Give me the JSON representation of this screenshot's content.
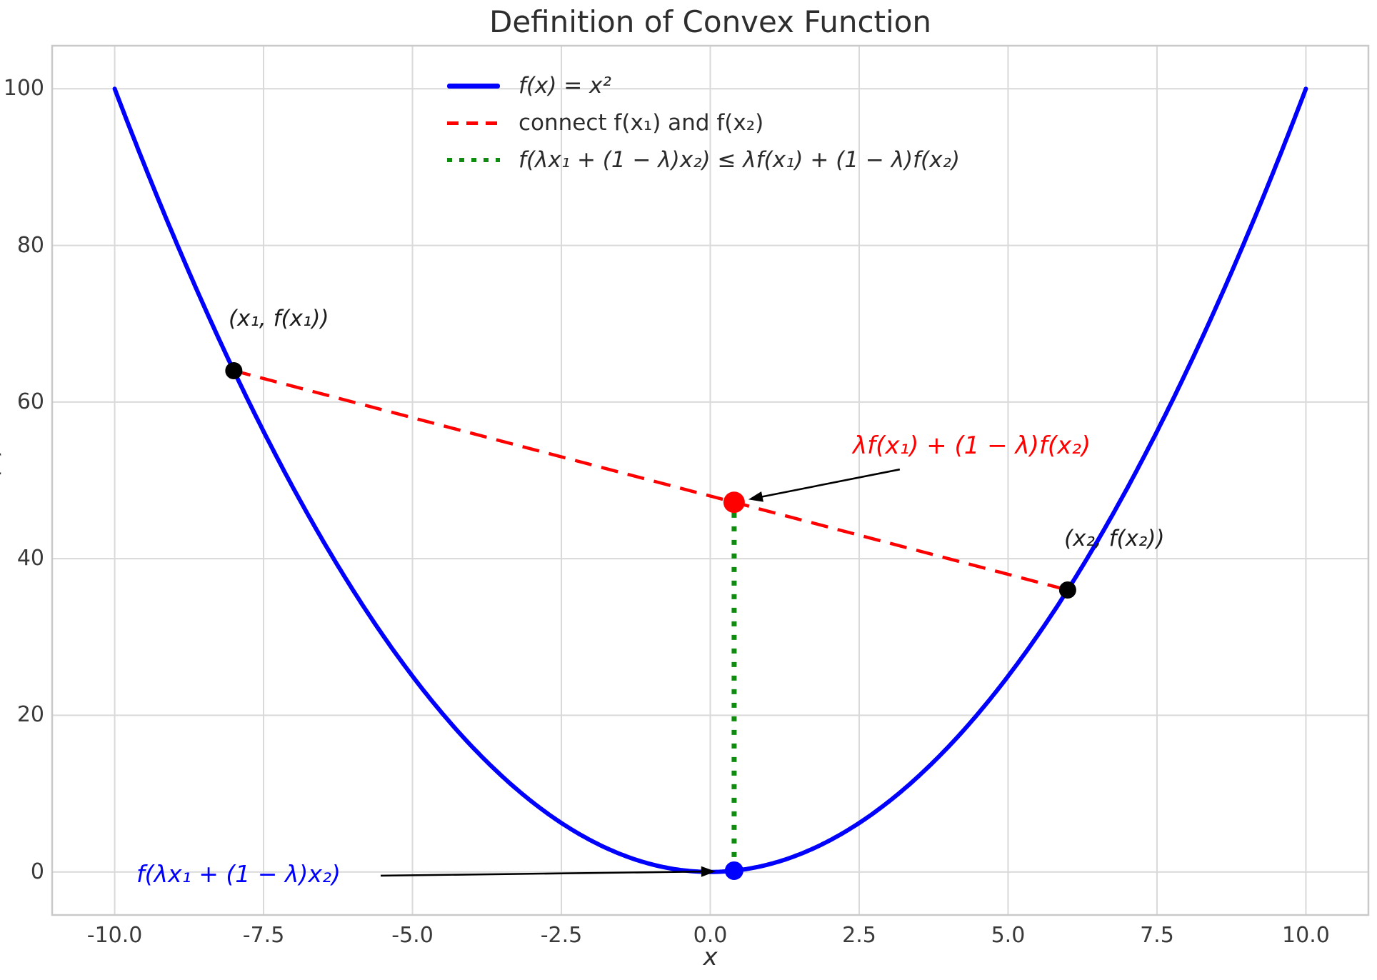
{
  "chart_data": {
    "type": "line",
    "title": "Definition of Convex Function",
    "xlabel": "x",
    "ylabel": "f(x)",
    "xlim": [
      -11.05,
      11.05
    ],
    "ylim": [
      -5.5,
      105.5
    ],
    "xtick_values": [
      -10,
      -7.5,
      -5,
      -2.5,
      0,
      2.5,
      5,
      7.5,
      10
    ],
    "xtick_labels": [
      "-10.0",
      "-7.5",
      "-5.0",
      "-2.5",
      "0.0",
      "2.5",
      "5.0",
      "7.5",
      "10.0"
    ],
    "ytick_values": [
      0,
      20,
      40,
      60,
      80,
      100
    ],
    "ytick_labels": [
      "0",
      "20",
      "40",
      "60",
      "80",
      "100"
    ],
    "grid": true,
    "legend_position": "upper center, frameless",
    "legend": {
      "entries": [
        {
          "label": "f(x) = x²",
          "color": "#0000ff",
          "style": "solid"
        },
        {
          "label": "connect f(x₁) and f(x₂)",
          "color": "#ff0000",
          "style": "dashed"
        },
        {
          "label": "f(λx₁ + (1 − λ)x₂) ≤ λf(x₁) + (1 − λ)f(x₂)",
          "color": "#0f8c0f",
          "style": "dotted"
        }
      ]
    },
    "series": [
      {
        "name": "f(x) = x²",
        "kind": "function",
        "expr": "x^2",
        "x_range": [
          -10,
          10
        ],
        "color": "#0000ff",
        "style": "solid",
        "width": 6
      },
      {
        "name": "chord connecting (x₁,f(x₁)) and (x₂,f(x₂))",
        "kind": "segment",
        "points": [
          [
            -8,
            64
          ],
          [
            6,
            36
          ]
        ],
        "color": "#ff0000",
        "style": "dashed",
        "width": 4.5
      },
      {
        "name": "vertical gap at convex combination",
        "kind": "segment",
        "points": [
          [
            0.4,
            0.16
          ],
          [
            0.4,
            47.2
          ]
        ],
        "color": "#0f8c0f",
        "style": "dotted",
        "width": 7
      }
    ],
    "markers": [
      {
        "name": "point-x1",
        "x": -8,
        "y": 64,
        "color": "#000000",
        "radius": 12
      },
      {
        "name": "point-x2",
        "x": 6,
        "y": 36,
        "color": "#000000",
        "radius": 12
      },
      {
        "name": "point-chord-combination",
        "x": 0.4,
        "y": 47.2,
        "color": "#ff0000",
        "radius": 15
      },
      {
        "name": "point-function-combination",
        "x": 0.4,
        "y": 0.16,
        "color": "#0000ff",
        "radius": 13
      }
    ],
    "annotations": [
      {
        "text": "(x₁, f(x₁))",
        "color": "#1c1c1c"
      },
      {
        "text": "λf(x₁) + (1 − λ)f(x₂)",
        "color": "#ff0000"
      },
      {
        "text": "(x₂, f(x₂))",
        "color": "#1c1c1c"
      },
      {
        "text": "f(λx₁ + (1 − λ)x₂)",
        "color": "#0000ff"
      }
    ],
    "key_values": {
      "lambda": 0.4,
      "x1": -8,
      "f_x1": 64,
      "x2": 6,
      "f_x2": 36,
      "convex_combination_x": 0.4,
      "f_of_combination": 0.16,
      "combination_of_f": 47.2
    },
    "colors": {
      "curve": "#0000ff",
      "chord": "#ff0000",
      "gap_line": "#0f8c0f",
      "grid": "#d9d9d9",
      "spine": "#c9c9c9",
      "tick_text": "#3a3a3a",
      "title_text": "#2e2e2e",
      "annotation_arrow": "#000000",
      "background": "#ffffff"
    }
  }
}
